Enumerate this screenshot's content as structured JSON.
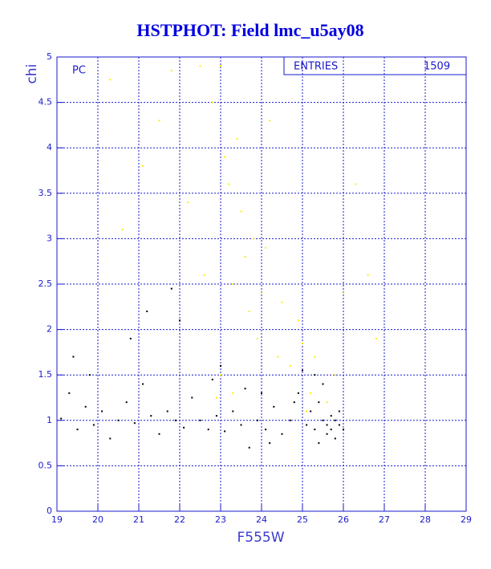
{
  "chart_data": {
    "type": "scatter",
    "title": "HSTPHOT: Field lmc_u5ay08",
    "x_label": "F555W",
    "y_label": "chi",
    "annotation": "PC",
    "stats_label": "ENTRIES",
    "stats_value": "1509",
    "xlim": [
      19,
      29
    ],
    "ylim": [
      0,
      5
    ],
    "xticks": [
      19,
      20,
      21,
      22,
      23,
      24,
      25,
      26,
      27,
      28,
      29
    ],
    "yticks": [
      0,
      0.5,
      1,
      1.5,
      2,
      2.5,
      3,
      3.5,
      4,
      4.5,
      5
    ],
    "grid": true,
    "series": [
      {
        "color": "#ffee00",
        "x": [
          20.3,
          20.6,
          21.1,
          21.5,
          21.8,
          22.2,
          22.5,
          22.6,
          22.8,
          23.0,
          23.1,
          23.2,
          23.3,
          23.4,
          23.5,
          23.6,
          23.7,
          23.8,
          23.9,
          24.0,
          24.2,
          24.4,
          24.5,
          24.7,
          24.9,
          25.0,
          25.2,
          25.3,
          25.5,
          25.6,
          25.8,
          26.0,
          26.3,
          26.6,
          26.8,
          23.0,
          23.3,
          24.1,
          22.9,
          25.1
        ],
        "values": [
          4.75,
          3.1,
          3.8,
          4.3,
          4.85,
          3.4,
          4.9,
          2.6,
          4.5,
          4.9,
          3.9,
          3.6,
          2.5,
          4.1,
          3.3,
          2.8,
          2.2,
          3.0,
          1.9,
          2.4,
          4.3,
          1.7,
          2.3,
          1.6,
          2.1,
          1.85,
          1.3,
          1.7,
          1.4,
          1.2,
          1.5,
          2.4,
          3.6,
          2.6,
          1.9,
          1.5,
          1.3,
          2.9,
          1.25,
          1.1
        ]
      },
      {
        "color": "#000000",
        "x": [
          19.1,
          19.3,
          19.5,
          19.7,
          19.9,
          20.1,
          20.3,
          20.5,
          20.7,
          20.9,
          21.1,
          21.3,
          21.5,
          21.7,
          21.9,
          22.1,
          22.3,
          22.5,
          22.7,
          22.9,
          23.1,
          23.3,
          23.5,
          23.7,
          23.9,
          24.1,
          24.3,
          24.5,
          24.7,
          24.9,
          25.1,
          25.2,
          25.3,
          25.4,
          25.5,
          25.6,
          25.6,
          25.7,
          25.7,
          25.8,
          25.8,
          25.9,
          25.9,
          26.0,
          25.5,
          25.3,
          24.8,
          24.2,
          23.6,
          22.8,
          21.8,
          20.8,
          19.8,
          19.4,
          21.2,
          22.0,
          23.0,
          24.0,
          25.0,
          25.4
        ],
        "values": [
          1.02,
          1.3,
          0.9,
          1.15,
          0.95,
          1.1,
          0.8,
          1.0,
          1.2,
          0.97,
          1.4,
          1.05,
          0.85,
          1.1,
          1.0,
          0.92,
          1.25,
          1.0,
          0.9,
          1.05,
          0.88,
          1.1,
          0.95,
          0.7,
          1.0,
          0.9,
          1.15,
          0.85,
          1.0,
          1.3,
          0.95,
          1.1,
          0.9,
          1.2,
          1.0,
          0.95,
          0.85,
          1.05,
          0.9,
          1.0,
          0.8,
          0.95,
          1.1,
          0.9,
          1.4,
          1.5,
          1.2,
          0.75,
          1.35,
          1.45,
          2.45,
          1.9,
          1.5,
          1.7,
          2.2,
          2.1,
          1.6,
          1.3,
          1.55,
          0.75
        ]
      }
    ]
  }
}
